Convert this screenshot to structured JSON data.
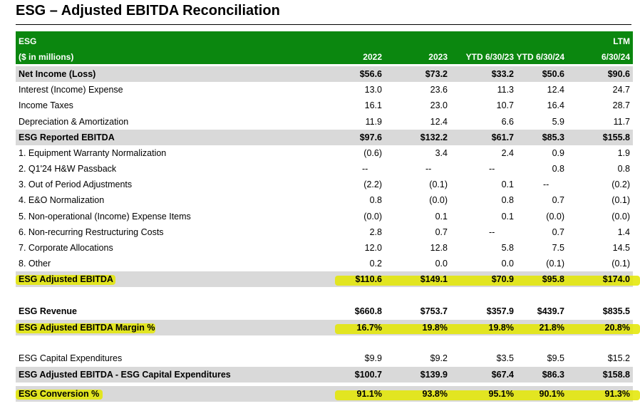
{
  "title": "ESG – Adjusted EBITDA Reconciliation",
  "header": {
    "entity": "ESG",
    "units": "($ in millions)",
    "columns": [
      "2022",
      "2023",
      "YTD 6/30/23",
      "YTD 6/30/24",
      "6/30/24"
    ],
    "ltm_label": "LTM"
  },
  "colors": {
    "header_bg": "#0b870f",
    "shade": "#d9d9d9",
    "highlight": "#e3e600"
  },
  "rows": [
    {
      "label": "Net Income (Loss)",
      "values": [
        "$56.6",
        "$73.2",
        "$33.2",
        "$50.6",
        "$90.6"
      ]
    },
    {
      "label": "Interest (Income) Expense",
      "values": [
        "13.0",
        "23.6",
        "11.3",
        "12.4",
        "24.7"
      ]
    },
    {
      "label": "Income Taxes",
      "values": [
        "16.1",
        "23.0",
        "10.7",
        "16.4",
        "28.7"
      ]
    },
    {
      "label": "Depreciation & Amortization",
      "values": [
        "11.9",
        "12.4",
        "6.6",
        "5.9",
        "11.7"
      ]
    },
    {
      "label": "ESG Reported EBITDA",
      "values": [
        "$97.6",
        "$132.2",
        "$61.7",
        "$85.3",
        "$155.8"
      ]
    },
    {
      "label": "1. Equipment Warranty Normalization",
      "values": [
        "(0.6)",
        "3.4",
        "2.4",
        "0.9",
        "1.9"
      ]
    },
    {
      "label": "2. Q1'24 H&W Passback",
      "values": [
        "--",
        "--",
        "--",
        "0.8",
        "0.8"
      ]
    },
    {
      "label": "3. Out of Period Adjustments",
      "values": [
        "(2.2)",
        "(0.1)",
        "0.1",
        "--",
        "(0.2)"
      ]
    },
    {
      "label": "4. E&O Normalization",
      "values": [
        "0.8",
        "(0.0)",
        "0.8",
        "0.7",
        "(0.1)"
      ]
    },
    {
      "label": "5. Non-operational (Income) Expense Items",
      "values": [
        "(0.0)",
        "0.1",
        "0.1",
        "(0.0)",
        "(0.0)"
      ]
    },
    {
      "label": "6. Non-recurring Restructuring Costs",
      "values": [
        "2.8",
        "0.7",
        "--",
        "0.7",
        "1.4"
      ]
    },
    {
      "label": "7. Corporate Allocations",
      "values": [
        "12.0",
        "12.8",
        "5.8",
        "7.5",
        "14.5"
      ]
    },
    {
      "label": "8. Other",
      "values": [
        "0.2",
        "0.0",
        "0.0",
        "(0.1)",
        "(0.1)"
      ]
    },
    {
      "label": "ESG Adjusted EBITDA",
      "values": [
        "$110.6",
        "$149.1",
        "$70.9",
        "$95.8",
        "$174.0"
      ]
    },
    {
      "label": "ESG Revenue",
      "values": [
        "$660.8",
        "$753.7",
        "$357.9",
        "$439.7",
        "$835.5"
      ]
    },
    {
      "label": "ESG Adjusted EBITDA Margin %",
      "values": [
        "16.7%",
        "19.8%",
        "19.8%",
        "21.8%",
        "20.8%"
      ]
    },
    {
      "label": "ESG Capital Expenditures",
      "values": [
        "$9.9",
        "$9.2",
        "$3.5",
        "$9.5",
        "$15.2"
      ]
    },
    {
      "label": "ESG Adjusted EBITDA - ESG Capital Expenditures",
      "values": [
        "$100.7",
        "$139.9",
        "$67.4",
        "$86.3",
        "$158.8"
      ]
    },
    {
      "label": "ESG Conversion %",
      "values": [
        "91.1%",
        "93.8%",
        "95.1%",
        "90.1%",
        "91.3%"
      ]
    }
  ]
}
